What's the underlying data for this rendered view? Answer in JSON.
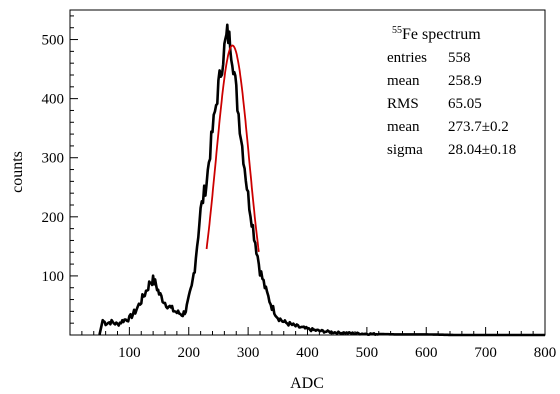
{
  "chart_data": {
    "type": "line",
    "title": {
      "superscript": "55",
      "text": "Fe spectrum"
    },
    "xlabel": "ADC",
    "ylabel": "counts",
    "xlim": [
      0,
      800
    ],
    "ylim": [
      0,
      550
    ],
    "x_ticks": [
      100,
      200,
      300,
      400,
      500,
      600,
      700,
      800
    ],
    "y_ticks": [
      100,
      200,
      300,
      400,
      500
    ],
    "grid": false,
    "series": [
      {
        "role": "histogram",
        "color": "#000000",
        "x": [
          50,
          55,
          60,
          70,
          80,
          90,
          100,
          110,
          120,
          130,
          135,
          140,
          145,
          150,
          160,
          170,
          180,
          190,
          195,
          200,
          205,
          210,
          220,
          230,
          240,
          250,
          260,
          265,
          270,
          275,
          280,
          290,
          300,
          310,
          320,
          330,
          340,
          350,
          360,
          380,
          400,
          420,
          450,
          500,
          550,
          600,
          650,
          700,
          800
        ],
        "y": [
          2,
          25,
          20,
          22,
          18,
          25,
          28,
          40,
          58,
          78,
          90,
          93,
          85,
          70,
          55,
          45,
          38,
          35,
          42,
          60,
          80,
          115,
          210,
          260,
          345,
          420,
          485,
          510,
          495,
          460,
          410,
          320,
          235,
          170,
          110,
          75,
          48,
          30,
          22,
          15,
          10,
          7,
          4,
          2,
          1,
          1,
          0,
          0,
          0
        ]
      },
      {
        "role": "gaussian fit",
        "color": "#cc0000",
        "x_range": [
          230,
          318
        ],
        "mean": 273.7,
        "sigma": 28.04,
        "amplitude": 490
      }
    ],
    "stats_box": {
      "rows": [
        {
          "label": "entries",
          "value": "558"
        },
        {
          "label": "mean",
          "value": "258.9"
        },
        {
          "label": "RMS",
          "value": "65.05"
        },
        {
          "label": "mean",
          "value": "273.7±0.2"
        },
        {
          "label": "sigma",
          "value": "28.04±0.18"
        }
      ]
    }
  }
}
